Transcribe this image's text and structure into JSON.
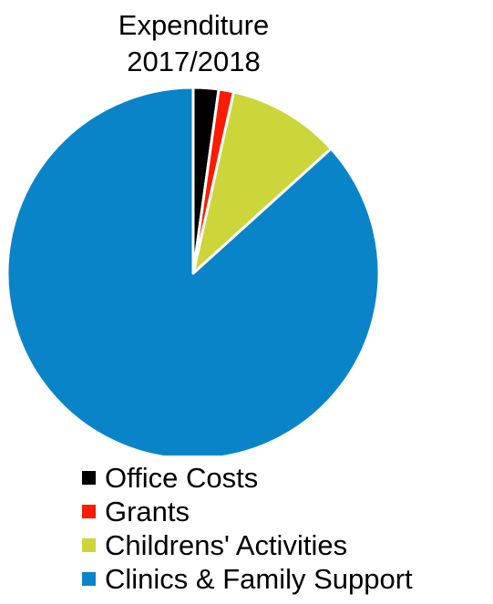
{
  "chart_data": {
    "type": "pie",
    "title": "Expenditure\n2017/2018",
    "categories": [
      "Office Costs",
      "Grants",
      "Childrens' Activities",
      "Clinics & Family Support"
    ],
    "values": [
      2.2,
      1.3,
      9.8,
      86.7
    ],
    "colors": [
      "#000000",
      "#FF1A00",
      "#CCD63B",
      "#0A84C8"
    ],
    "legend": "bottom"
  }
}
